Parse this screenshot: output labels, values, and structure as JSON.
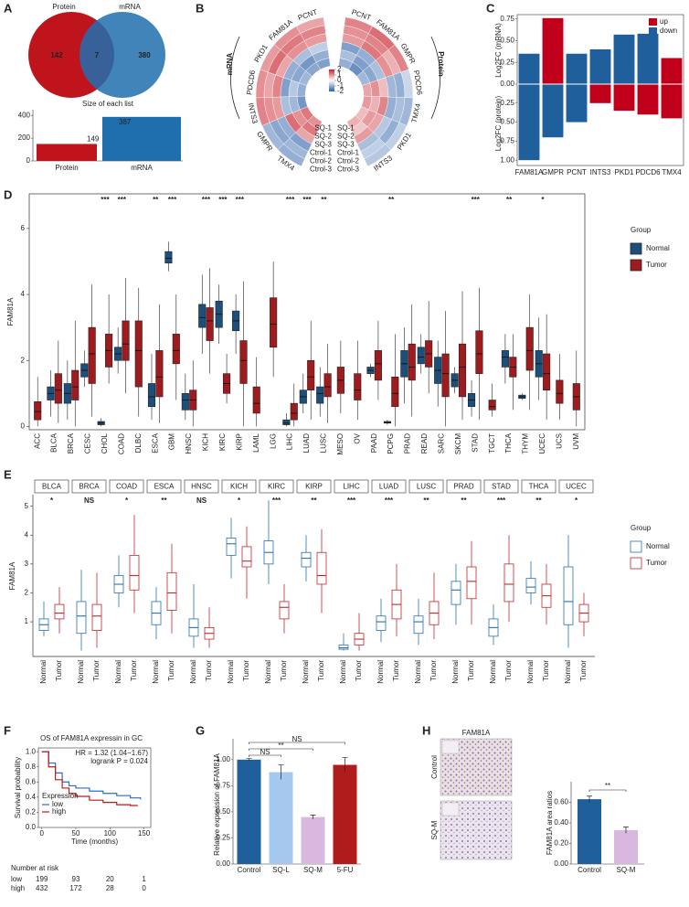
{
  "panels": {
    "A": {
      "letter": "A",
      "venn": {
        "sets": [
          "Protein",
          "mRNA"
        ],
        "counts": [
          142,
          7,
          380
        ],
        "colors": [
          "#c0141c",
          "#1f6fae"
        ]
      },
      "bars": {
        "type": "bar",
        "title": "Size of each list",
        "categories": [
          "Protein",
          "mRNA"
        ],
        "values": [
          149,
          387
        ],
        "colors": [
          "#c0141c",
          "#1f6fae"
        ],
        "ylim": [
          0,
          450
        ],
        "yticks": [
          0,
          200,
          400
        ]
      }
    },
    "B": {
      "letter": "B",
      "clim": [
        -2,
        2
      ],
      "legend_ticks": [
        2,
        1,
        0,
        -1,
        -2
      ],
      "colors": [
        "#2b5fa8",
        "#ffffff",
        "#c8202a"
      ],
      "samples": [
        "SQ-1",
        "SQ-2",
        "SQ-3",
        "Ctrol-1",
        "Ctrol-2",
        "Ctrol-3"
      ],
      "mrna": {
        "title": "mRNA",
        "genes": [
          "PCNT",
          "FAM81A",
          "PKD1",
          "PDCD6",
          "INTS3",
          "GMPR",
          "TMX4"
        ],
        "values": [
          [
            -1.2,
            -1.0,
            -0.6,
            0.9,
            1.1,
            0.8
          ],
          [
            -1.1,
            -1.3,
            -0.8,
            1.0,
            1.2,
            1.0
          ],
          [
            -0.9,
            -1.1,
            -1.0,
            0.8,
            1.3,
            0.9
          ],
          [
            -1.0,
            -0.7,
            -1.2,
            1.1,
            0.8,
            1.0
          ],
          [
            -1.3,
            -0.9,
            -0.8,
            0.9,
            1.0,
            1.1
          ],
          [
            1.2,
            1.0,
            1.3,
            -1.0,
            -1.1,
            -0.9
          ],
          [
            1.0,
            1.2,
            0.8,
            -1.2,
            -0.9,
            -1.0
          ]
        ]
      },
      "protein": {
        "title": "Protein",
        "genes": [
          "PCNT",
          "FAM81A",
          "GMPR",
          "PDCD6",
          "TMX4",
          "PKD1",
          "INTS3"
        ],
        "values": [
          [
            -1.0,
            -0.8,
            -1.2,
            0.9,
            1.0,
            1.1
          ],
          [
            -1.4,
            -1.2,
            -1.0,
            1.2,
            1.1,
            1.3
          ],
          [
            -0.9,
            -1.1,
            -0.8,
            1.0,
            0.7,
            1.1
          ],
          [
            0.8,
            1.0,
            0.6,
            -0.9,
            -1.0,
            -0.5
          ],
          [
            0.9,
            0.7,
            1.1,
            -1.0,
            -0.8,
            -0.9
          ],
          [
            0.6,
            0.9,
            0.8,
            -0.7,
            -1.0,
            -0.6
          ],
          [
            0.7,
            0.5,
            0.9,
            -0.8,
            -0.6,
            -0.7
          ]
        ]
      }
    },
    "C": {
      "letter": "C",
      "type": "diverging-bar",
      "categories": [
        "FAM81A",
        "GMPR",
        "PCNT",
        "INTS3",
        "PKD1",
        "PDCD6",
        "TMX4"
      ],
      "mrna_label": "Log2FC (mRNA)",
      "protein_label": "Log2FC (protein)",
      "mrna_values": [
        0.35,
        0.76,
        0.35,
        0.4,
        0.57,
        0.58,
        0.3
      ],
      "mrna_colors": [
        "#1f5f9c",
        "#c0001a",
        "#1f5f9c",
        "#1f5f9c",
        "#1f5f9c",
        "#1f5f9c",
        "#c0001a"
      ],
      "protein_values": [
        1.0,
        0.7,
        0.5,
        0.25,
        0.35,
        0.4,
        0.45
      ],
      "protein_colors": [
        "#1f5f9c",
        "#1f5f9c",
        "#1f5f9c",
        "#c0001a",
        "#c0001a",
        "#c0001a",
        "#c0001a"
      ],
      "mrna_lim": [
        0,
        0.8
      ],
      "protein_lim": [
        0,
        1.07
      ],
      "mrna_ticks": [
        {
          "value": 0,
          "label": "0.00"
        },
        0.25,
        {
          "value": 0.5,
          "label": "0.50"
        },
        0.75
      ],
      "protein_ticks": [
        0.25,
        {
          "value": 0.5,
          "label": "0.50"
        },
        0.75,
        {
          "value": 1,
          "label": "1.00"
        }
      ],
      "legend": [
        {
          "name": "up",
          "color": "#c0001a"
        },
        {
          "name": "down",
          "color": "#1f5f9c"
        }
      ]
    },
    "D": {
      "letter": "D",
      "type": "box",
      "ylabel": "FAM81A",
      "ylim": [
        -0.1,
        7.05
      ],
      "yticks": [
        0,
        2,
        4,
        6
      ],
      "legend_title": "Group",
      "groups": [
        "Normal",
        "Tumor"
      ],
      "colors": [
        "#1d4f7d",
        "#9e1b1e"
      ],
      "categories": [
        "ACC",
        "BLCA",
        "BRCA",
        "CESC",
        "CHOL",
        "COAD",
        "DLBC",
        "ESCA",
        "GBM",
        "HNSC",
        "KICH",
        "KIRC",
        "KIRP",
        "LAML",
        "LGG",
        "LIHC",
        "LUAD",
        "LUSC",
        "MESO",
        "OV",
        "PAAD",
        "PCPG",
        "PRAD",
        "READ",
        "SARC",
        "SKCM",
        "STAD",
        "TGCT",
        "THCA",
        "THYM",
        "UCEC",
        "UCS",
        "UVM"
      ],
      "significance": [
        null,
        null,
        null,
        null,
        "***",
        "***",
        null,
        "**",
        "***",
        null,
        "***",
        "***",
        "***",
        null,
        null,
        "***",
        "***",
        "**",
        null,
        null,
        null,
        "**",
        null,
        null,
        null,
        null,
        "***",
        null,
        "**",
        null,
        "*",
        null,
        null
      ],
      "normal": [
        null,
        [
          0.3,
          0.8,
          1.0,
          1.2,
          1.7
        ],
        [
          0.2,
          0.7,
          1.0,
          1.3,
          2.0
        ],
        [
          1.2,
          1.5,
          1.7,
          1.9,
          2.3
        ],
        [
          0,
          0.05,
          0.1,
          0.15,
          0.25
        ],
        [
          1.6,
          2.0,
          2.2,
          2.4,
          3.0
        ],
        null,
        [
          0.2,
          0.6,
          0.9,
          1.3,
          2.2
        ],
        [
          4.7,
          4.95,
          5.1,
          5.3,
          5.6
        ],
        [
          0.2,
          0.5,
          0.8,
          1.0,
          1.6
        ],
        [
          2.2,
          3.0,
          3.3,
          3.7,
          4.6
        ],
        [
          2.5,
          3.0,
          3.4,
          3.8,
          4.3
        ],
        [
          2.2,
          2.9,
          3.2,
          3.5,
          4.0
        ],
        null,
        null,
        [
          0,
          0.05,
          0.1,
          0.2,
          0.4
        ],
        [
          0.4,
          0.7,
          0.9,
          1.1,
          1.6
        ],
        [
          0.3,
          0.7,
          1.0,
          1.2,
          1.8
        ],
        null,
        null,
        [
          1.5,
          1.6,
          1.7,
          1.8,
          1.9
        ],
        [
          0.05,
          0.1,
          0.12,
          0.15,
          0.2
        ],
        [
          0.7,
          1.5,
          1.9,
          2.3,
          3.0
        ],
        [
          1.6,
          1.9,
          2.1,
          2.4,
          2.8
        ],
        [
          0.6,
          1.3,
          1.7,
          2.1,
          2.6
        ],
        [
          1.0,
          1.2,
          1.4,
          1.6,
          1.8
        ],
        [
          0.3,
          0.6,
          0.8,
          1.0,
          1.4
        ],
        null,
        [
          1.3,
          1.8,
          2.1,
          2.3,
          2.8
        ],
        [
          0.8,
          0.85,
          0.9,
          0.95,
          1.0
        ],
        [
          0.8,
          1.5,
          1.9,
          2.3,
          3.3
        ],
        null,
        null
      ],
      "tumor": [
        [
          0,
          0.2,
          0.45,
          0.75,
          1.5
        ],
        [
          0.1,
          0.7,
          1.1,
          1.6,
          2.6
        ],
        [
          0,
          0.8,
          1.2,
          1.7,
          3.2
        ],
        [
          0.3,
          1.3,
          2.2,
          3.0,
          4.3
        ],
        [
          1.3,
          1.8,
          2.3,
          2.8,
          4.0
        ],
        [
          1.0,
          2.0,
          2.5,
          3.2,
          4.5
        ],
        [
          0.3,
          1.2,
          2.3,
          3.2,
          4.2
        ],
        [
          0.1,
          0.9,
          1.5,
          2.3,
          3.7
        ],
        [
          0.8,
          1.9,
          2.3,
          2.8,
          4.0
        ],
        [
          0,
          0.5,
          0.8,
          1.1,
          2.0
        ],
        [
          1.6,
          2.6,
          3.2,
          3.6,
          4.8
        ],
        [
          0.7,
          1.0,
          1.3,
          1.6,
          2.2
        ],
        [
          0,
          1.3,
          2.0,
          2.6,
          4.4
        ],
        [
          0,
          0.4,
          0.7,
          1.2,
          2.1
        ],
        [
          1.5,
          2.4,
          3.1,
          3.9,
          5.0
        ],
        [
          0,
          0.2,
          0.4,
          0.7,
          1.3
        ],
        [
          0.2,
          1.1,
          1.5,
          2.0,
          3.2
        ],
        [
          0.1,
          0.9,
          1.2,
          1.6,
          2.5
        ],
        [
          0.4,
          1.0,
          1.4,
          1.8,
          2.6
        ],
        [
          0.2,
          0.8,
          1.1,
          1.6,
          2.6
        ],
        [
          0.8,
          1.4,
          1.9,
          2.3,
          3.2
        ],
        [
          0,
          0.6,
          1.0,
          1.5,
          2.8
        ],
        [
          0.3,
          1.4,
          1.8,
          2.5,
          3.7
        ],
        [
          1.0,
          1.8,
          2.2,
          2.6,
          3.8
        ],
        [
          0,
          0.9,
          1.6,
          2.2,
          3.5
        ],
        [
          0.2,
          0.9,
          1.8,
          2.5,
          4.1
        ],
        [
          0.2,
          1.6,
          2.2,
          2.9,
          4.2
        ],
        [
          0.3,
          0.5,
          0.6,
          0.8,
          1.3
        ],
        [
          0.5,
          1.5,
          1.8,
          2.1,
          2.8
        ],
        [
          0.5,
          1.7,
          2.3,
          3.0,
          4.0
        ],
        [
          0.2,
          1.1,
          1.6,
          2.2,
          3.4
        ],
        [
          0.2,
          0.7,
          1.0,
          1.4,
          2.2
        ],
        [
          0,
          0.5,
          0.9,
          1.3,
          2.3
        ]
      ]
    },
    "E": {
      "letter": "E",
      "type": "paired-box",
      "ylabel": "FAM81A",
      "ylim": [
        -0.2,
        5.4
      ],
      "yticks": [
        1,
        2,
        3,
        4,
        5
      ],
      "legend_title": "Group",
      "groups": [
        "Normal",
        "Tumor"
      ],
      "colors": [
        "#2a6fb0",
        "#c0282e"
      ],
      "categories": [
        "BLCA",
        "BRCA",
        "COAD",
        "ESCA",
        "HNSC",
        "KICH",
        "KIRC",
        "KIRP",
        "LIHC",
        "LUAD",
        "LUSC",
        "PRAD",
        "STAD",
        "THCA",
        "UCEC"
      ],
      "significance": [
        "*",
        "NS",
        "*",
        "**",
        "NS",
        "*",
        "***",
        "**",
        "***",
        "***",
        "**",
        "**",
        "***",
        "**",
        "*"
      ],
      "normal": [
        [
          0.5,
          0.7,
          0.9,
          1.1,
          1.7
        ],
        [
          0,
          0.6,
          1.2,
          1.7,
          2.8
        ],
        [
          1.5,
          2.0,
          2.3,
          2.6,
          3.3
        ],
        [
          0.4,
          0.9,
          1.3,
          1.7,
          2.2
        ],
        [
          0.1,
          0.5,
          0.8,
          1.1,
          2.3
        ],
        [
          2.5,
          3.3,
          3.7,
          3.9,
          4.6
        ],
        [
          2.3,
          3.0,
          3.4,
          3.8,
          5.2
        ],
        [
          2.4,
          2.9,
          3.2,
          3.4,
          4.0
        ],
        [
          0,
          0.05,
          0.1,
          0.2,
          0.6
        ],
        [
          0.3,
          0.7,
          1.0,
          1.2,
          1.8
        ],
        [
          0.2,
          0.6,
          1.0,
          1.2,
          1.8
        ],
        [
          0.9,
          1.6,
          2.1,
          2.4,
          3.0
        ],
        [
          0.2,
          0.5,
          0.8,
          1.1,
          1.6
        ],
        [
          1.6,
          2.0,
          2.2,
          2.5,
          3.1
        ],
        [
          0.1,
          0.9,
          1.7,
          2.9,
          4.0
        ]
      ],
      "tumor": [
        [
          0.6,
          1.1,
          1.3,
          1.6,
          2.2
        ],
        [
          0.1,
          0.7,
          1.2,
          1.6,
          2.7
        ],
        [
          1.3,
          2.1,
          2.6,
          3.3,
          4.7
        ],
        [
          0.6,
          1.4,
          2.0,
          2.7,
          3.7
        ],
        [
          0.1,
          0.4,
          0.6,
          0.8,
          1.5
        ],
        [
          1.8,
          2.9,
          3.1,
          3.6,
          4.3
        ],
        [
          0.6,
          1.1,
          1.5,
          1.7,
          2.3
        ],
        [
          1.3,
          2.3,
          2.6,
          3.4,
          4.2
        ],
        [
          0,
          0.2,
          0.4,
          0.6,
          1.3
        ],
        [
          0.5,
          1.1,
          1.6,
          2.1,
          3.0
        ],
        [
          0.4,
          0.9,
          1.3,
          1.7,
          2.7
        ],
        [
          0.9,
          1.8,
          2.4,
          2.9,
          3.8
        ],
        [
          1.0,
          1.7,
          2.3,
          3.0,
          4.0
        ],
        [
          0.9,
          1.5,
          1.9,
          2.3,
          3.0
        ],
        [
          0.5,
          1.0,
          1.3,
          1.6,
          2.0
        ]
      ]
    },
    "F": {
      "letter": "F",
      "type": "line",
      "title": "OS of FAM81A expressin in GC",
      "hr": "HR = 1.32 (1.04−1.67)",
      "pval": "logrank P = 0.024",
      "xlabel": "Time (months)",
      "ylabel": "Survival probability",
      "xlim": [
        -5,
        160
      ],
      "ylim": [
        0,
        1.05
      ],
      "xticks": [
        0,
        50,
        100,
        150
      ],
      "yticks": [
        {
          "value": 0,
          "label": "0.0"
        },
        0.2,
        0.4,
        0.6,
        0.8,
        {
          "value": 1,
          "label": "1.0"
        }
      ],
      "legend_title": "Expression",
      "series": [
        {
          "name": "low",
          "color": "#2a6fc0",
          "x": [
            0,
            10,
            20,
            30,
            40,
            50,
            70,
            90,
            110,
            130,
            145
          ],
          "values": [
            1,
            0.85,
            0.72,
            0.6,
            0.55,
            0.52,
            0.48,
            0.45,
            0.42,
            0.39,
            0.37
          ]
        },
        {
          "name": "high",
          "color": "#c01818",
          "x": [
            0,
            10,
            20,
            30,
            40,
            50,
            70,
            90,
            110,
            130,
            140
          ],
          "values": [
            1,
            0.8,
            0.63,
            0.52,
            0.45,
            0.41,
            0.36,
            0.33,
            0.3,
            0.29,
            0.28
          ]
        }
      ],
      "risk": {
        "title": "Number at risk",
        "counts": [
          [
            199,
            93,
            20,
            1
          ],
          [
            432,
            172,
            28,
            0
          ]
        ]
      }
    },
    "G": {
      "letter": "G",
      "type": "bar",
      "ylabel": "Relative expression of FAM81A",
      "ylim": [
        0,
        1.2
      ],
      "yticks": [
        {
          "value": 0,
          "label": "0.00"
        },
        0.25,
        {
          "value": 0.5,
          "label": "0.50"
        },
        0.75,
        {
          "value": 1,
          "label": "1.00"
        }
      ],
      "categories": [
        "Control",
        "SQ-L",
        "SQ-M",
        "5-FU"
      ],
      "values": [
        1.0,
        0.88,
        0.45,
        0.95
      ],
      "errors": [
        0.01,
        0.07,
        0.02,
        0.07
      ],
      "colors": [
        "#1f5f9c",
        "#a6c8ee",
        "#d9b8df",
        "#b01c1c"
      ],
      "sig_labels": [
        "NS",
        "**",
        "NS"
      ]
    },
    "H": {
      "letter": "H",
      "image_title": "FAM81A",
      "image_labels": [
        "Control",
        "SQ-M"
      ],
      "type": "bar",
      "ylabel": "FAM81A area ratios",
      "ylim": [
        0,
        0.8
      ],
      "yticks": [
        {
          "value": 0,
          "label": "0.00"
        },
        {
          "value": 0.2,
          "label": "0.20"
        },
        {
          "value": 0.4,
          "label": "0.40"
        },
        {
          "value": 0.6,
          "label": "0.60"
        }
      ],
      "categories": [
        "Control",
        "SQ-M"
      ],
      "values": [
        0.63,
        0.33
      ],
      "errors": [
        0.03,
        0.03
      ],
      "colors": [
        "#1f5f9c",
        "#d9b8df"
      ],
      "sig_label": "**"
    }
  }
}
